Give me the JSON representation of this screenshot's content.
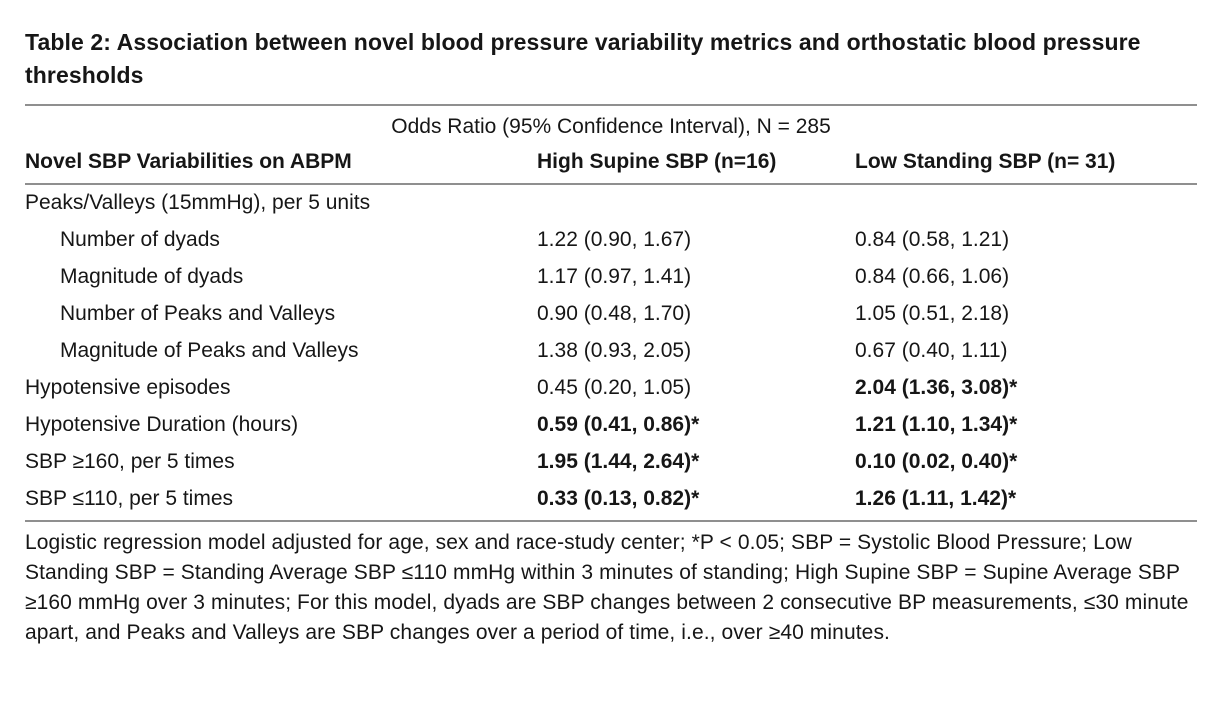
{
  "colors": {
    "background": "#ffffff",
    "text": "#161616",
    "rule": "#8f8f8f"
  },
  "title": "Table 2: Association between novel blood pressure variability metrics and orthostatic blood pressure thresholds",
  "table": {
    "spanner": "Odds Ratio (95% Confidence Interval), N = 285",
    "columns": [
      "Novel SBP Variabilities on ABPM",
      "High Supine SBP (n=16)",
      "Low Standing SBP (n= 31)"
    ],
    "rows": [
      {
        "label": "Peaks/Valleys (15mmHg), per 5 units",
        "indent": false,
        "high_supine": "",
        "high_bold": false,
        "low_standing": "",
        "low_bold": false
      },
      {
        "label": "Number of dyads",
        "indent": true,
        "high_supine": "1.22 (0.90, 1.67)",
        "high_bold": false,
        "low_standing": "0.84 (0.58, 1.21)",
        "low_bold": false
      },
      {
        "label": "Magnitude of dyads",
        "indent": true,
        "high_supine": "1.17 (0.97, 1.41)",
        "high_bold": false,
        "low_standing": "0.84 (0.66, 1.06)",
        "low_bold": false
      },
      {
        "label": "Number of Peaks and Valleys",
        "indent": true,
        "high_supine": "0.90 (0.48, 1.70)",
        "high_bold": false,
        "low_standing": "1.05 (0.51, 2.18)",
        "low_bold": false
      },
      {
        "label": "Magnitude of Peaks and Valleys",
        "indent": true,
        "high_supine": "1.38 (0.93, 2.05)",
        "high_bold": false,
        "low_standing": "0.67 (0.40, 1.11)",
        "low_bold": false
      },
      {
        "label": "Hypotensive episodes",
        "indent": false,
        "high_supine": "0.45 (0.20, 1.05)",
        "high_bold": false,
        "low_standing": "2.04 (1.36, 3.08)*",
        "low_bold": true
      },
      {
        "label": "Hypotensive Duration (hours)",
        "indent": false,
        "high_supine": "0.59 (0.41, 0.86)*",
        "high_bold": true,
        "low_standing": "1.21 (1.10, 1.34)*",
        "low_bold": true
      },
      {
        "label": "SBP ≥160, per 5 times",
        "indent": false,
        "high_supine": "1.95 (1.44, 2.64)*",
        "high_bold": true,
        "low_standing": "0.10 (0.02, 0.40)*",
        "low_bold": true
      },
      {
        "label": "SBP ≤110, per 5 times",
        "indent": false,
        "high_supine": "0.33 (0.13, 0.82)*",
        "high_bold": true,
        "low_standing": "1.26 (1.11, 1.42)*",
        "low_bold": true
      }
    ]
  },
  "footnote": "Logistic regression model adjusted for age, sex and race-study center; *P < 0.05; SBP = Systolic Blood Pressure; Low Standing SBP =  Standing Average SBP ≤110 mmHg within 3 minutes of standing; High Supine SBP = Supine Average SBP ≥160 mmHg over 3 minutes; For this model, dyads are SBP changes between 2 consecutive BP measurements, ≤30 minute apart, and Peaks and Valleys are SBP changes over a period of time, i.e., over ≥40 minutes."
}
